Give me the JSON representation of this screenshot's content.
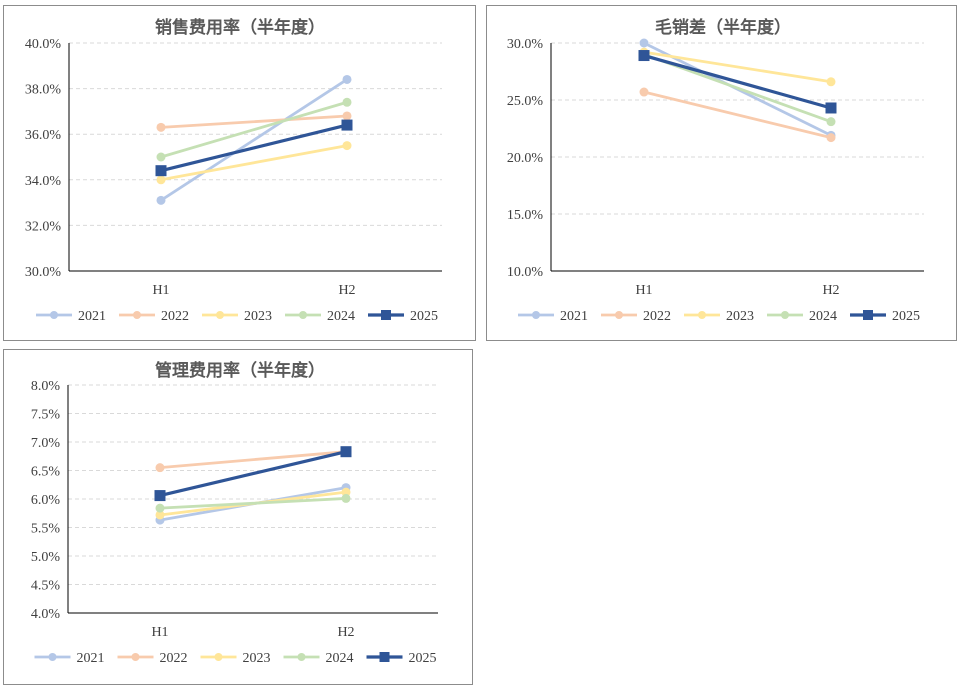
{
  "chart_data": [
    {
      "type": "line",
      "title": "销售费用率（半年度）",
      "categories": [
        "H1",
        "H2"
      ],
      "ylim": [
        0.3,
        0.4
      ],
      "yticks": [
        0.3,
        0.32,
        0.34,
        0.36,
        0.38,
        0.4
      ],
      "ytick_labels": [
        "30.0%",
        "32.0%",
        "34.0%",
        "36.0%",
        "38.0%",
        "40.0%"
      ],
      "legend": "bottom",
      "series": [
        {
          "name": "2021",
          "values": [
            0.331,
            0.384
          ],
          "color": "#b4c7e7",
          "marker": "circle"
        },
        {
          "name": "2022",
          "values": [
            0.363,
            0.368
          ],
          "color": "#f8cbad",
          "marker": "circle"
        },
        {
          "name": "2023",
          "values": [
            0.34,
            0.355
          ],
          "color": "#ffe699",
          "marker": "circle"
        },
        {
          "name": "2024",
          "values": [
            0.35,
            0.374
          ],
          "color": "#c5e0b4",
          "marker": "circle"
        },
        {
          "name": "2025",
          "values": [
            0.344,
            0.364
          ],
          "color": "#2f5597",
          "marker": "square"
        }
      ]
    },
    {
      "type": "line",
      "title": "毛销差（半年度）",
      "categories": [
        "H1",
        "H2"
      ],
      "ylim": [
        0.1,
        0.3
      ],
      "yticks": [
        0.1,
        0.15,
        0.2,
        0.25,
        0.3
      ],
      "ytick_labels": [
        "10.0%",
        "15.0%",
        "20.0%",
        "25.0%",
        "30.0%"
      ],
      "legend": "bottom",
      "series": [
        {
          "name": "2021",
          "values": [
            0.3,
            0.219
          ],
          "color": "#b4c7e7",
          "marker": "circle"
        },
        {
          "name": "2022",
          "values": [
            0.257,
            0.217
          ],
          "color": "#f8cbad",
          "marker": "circle"
        },
        {
          "name": "2023",
          "values": [
            0.292,
            0.266
          ],
          "color": "#ffe699",
          "marker": "circle"
        },
        {
          "name": "2024",
          "values": [
            0.29,
            0.231
          ],
          "color": "#c5e0b4",
          "marker": "circle"
        },
        {
          "name": "2025",
          "values": [
            0.289,
            0.243
          ],
          "color": "#2f5597",
          "marker": "square"
        }
      ]
    },
    {
      "type": "line",
      "title": "管理费用率（半年度）",
      "categories": [
        "H1",
        "H2"
      ],
      "ylim": [
        0.04,
        0.08
      ],
      "yticks": [
        0.04,
        0.045,
        0.05,
        0.055,
        0.06,
        0.065,
        0.07,
        0.075,
        0.08
      ],
      "ytick_labels": [
        "4.0%",
        "4.5%",
        "5.0%",
        "5.5%",
        "6.0%",
        "6.5%",
        "7.0%",
        "7.5%",
        "8.0%"
      ],
      "legend": "bottom",
      "series": [
        {
          "name": "2021",
          "values": [
            0.0563,
            0.062
          ],
          "color": "#b4c7e7",
          "marker": "circle"
        },
        {
          "name": "2022",
          "values": [
            0.0655,
            0.0683
          ],
          "color": "#f8cbad",
          "marker": "circle"
        },
        {
          "name": "2023",
          "values": [
            0.0572,
            0.0612
          ],
          "color": "#ffe699",
          "marker": "circle"
        },
        {
          "name": "2024",
          "values": [
            0.0584,
            0.0601
          ],
          "color": "#c5e0b4",
          "marker": "circle"
        },
        {
          "name": "2025",
          "values": [
            0.0606,
            0.0683
          ],
          "color": "#2f5597",
          "marker": "square"
        }
      ]
    }
  ]
}
